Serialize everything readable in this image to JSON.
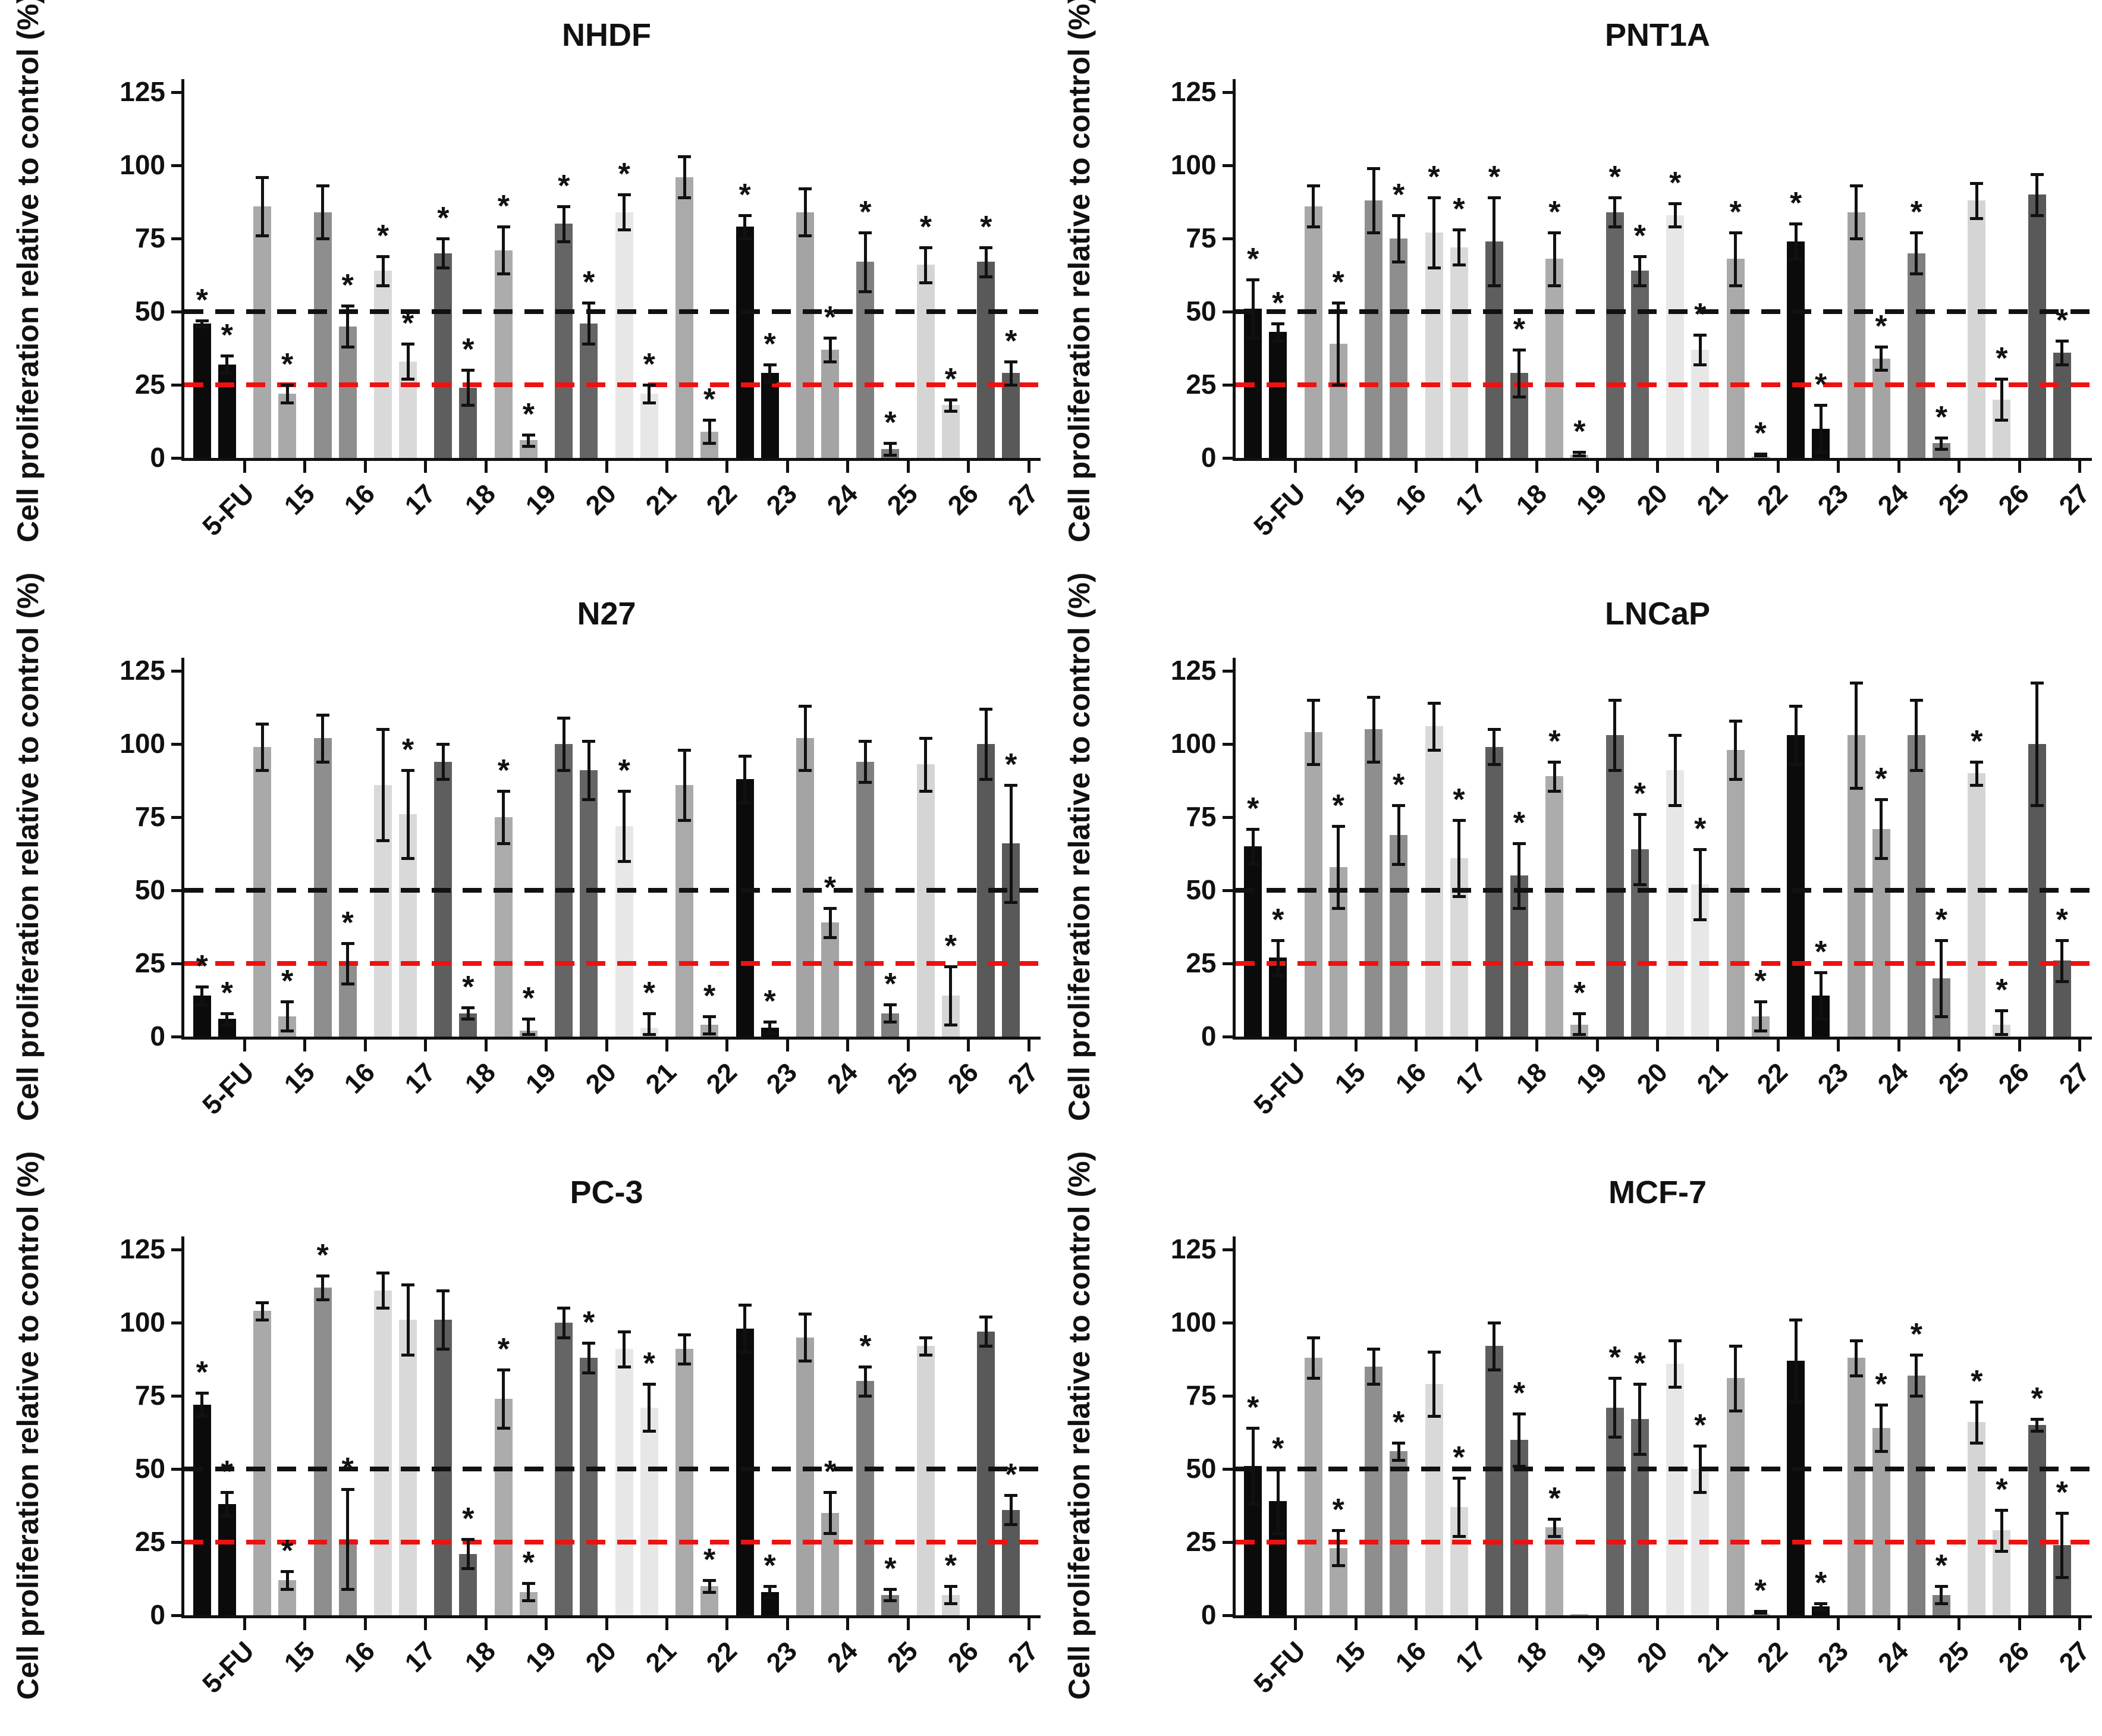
{
  "chart_data": {
    "type": "bar",
    "ylabel": "Cell proliferation relative to control (%)",
    "yticks": [
      0,
      25,
      50,
      75,
      100,
      125
    ],
    "ylim": [
      0,
      125
    ],
    "grid": false,
    "legend": "none",
    "categories": [
      "5-FU",
      "15",
      "16",
      "17",
      "18",
      "19",
      "20",
      "21",
      "22",
      "23",
      "24",
      "25",
      "26",
      "27"
    ],
    "palette": [
      "#0b0b0b",
      "#a9a9a9",
      "#8e8e8e",
      "#d9d9d9",
      "#5e5e5e",
      "#acacac",
      "#656565",
      "#e7e7e7",
      "#aaaaaa",
      "#0b0b0b",
      "#a4a4a4",
      "#7f7f7f",
      "#d5d5d5",
      "#595959"
    ],
    "bars_per_category": 2,
    "bar_format": [
      "value",
      "error",
      "significant"
    ],
    "significance_marker": "*",
    "ref_lines": [
      {
        "y": 50,
        "color": "#111111",
        "style": "dashed"
      },
      {
        "y": 25,
        "color": "#ee1111",
        "style": "dashed"
      }
    ],
    "charts": [
      {
        "title": "NHDF",
        "bars": [
          [
            [
              46,
              1,
              1
            ],
            [
              32,
              3,
              1
            ]
          ],
          [
            [
              86,
              10,
              0
            ],
            [
              22,
              3,
              1
            ]
          ],
          [
            [
              84,
              9,
              0
            ],
            [
              45,
              7,
              1
            ]
          ],
          [
            [
              64,
              5,
              1
            ],
            [
              33,
              6,
              1
            ]
          ],
          [
            [
              70,
              5,
              1
            ],
            [
              24,
              6,
              1
            ]
          ],
          [
            [
              71,
              8,
              1
            ],
            [
              6,
              2,
              1
            ]
          ],
          [
            [
              80,
              6,
              1
            ],
            [
              46,
              7,
              1
            ]
          ],
          [
            [
              84,
              6,
              1
            ],
            [
              22,
              3,
              1
            ]
          ],
          [
            [
              96,
              7,
              0
            ],
            [
              9,
              4,
              1
            ]
          ],
          [
            [
              79,
              4,
              1
            ],
            [
              29,
              3,
              1
            ]
          ],
          [
            [
              84,
              8,
              0
            ],
            [
              37,
              4,
              1
            ]
          ],
          [
            [
              67,
              10,
              1
            ],
            [
              3,
              2,
              1
            ]
          ],
          [
            [
              66,
              6,
              1
            ],
            [
              18,
              2,
              1
            ]
          ],
          [
            [
              67,
              5,
              1
            ],
            [
              29,
              4,
              1
            ]
          ]
        ]
      },
      {
        "title": "PNT1A",
        "bars": [
          [
            [
              51,
              10,
              1
            ],
            [
              43,
              3,
              1
            ]
          ],
          [
            [
              86,
              7,
              0
            ],
            [
              39,
              14,
              1
            ]
          ],
          [
            [
              88,
              11,
              0
            ],
            [
              75,
              8,
              1
            ]
          ],
          [
            [
              77,
              12,
              1
            ],
            [
              72,
              6,
              1
            ]
          ],
          [
            [
              74,
              15,
              1
            ],
            [
              29,
              8,
              1
            ]
          ],
          [
            [
              68,
              9,
              1
            ],
            [
              1,
              1,
              1
            ]
          ],
          [
            [
              84,
              5,
              1
            ],
            [
              64,
              5,
              1
            ]
          ],
          [
            [
              83,
              4,
              1
            ],
            [
              37,
              5,
              1
            ]
          ],
          [
            [
              68,
              9,
              1
            ],
            [
              0.5,
              1,
              1
            ]
          ],
          [
            [
              74,
              6,
              1
            ],
            [
              10,
              8,
              1
            ]
          ],
          [
            [
              84,
              9,
              0
            ],
            [
              34,
              4,
              1
            ]
          ],
          [
            [
              70,
              7,
              1
            ],
            [
              5,
              2,
              1
            ]
          ],
          [
            [
              88,
              6,
              0
            ],
            [
              20,
              7,
              1
            ]
          ],
          [
            [
              90,
              7,
              0
            ],
            [
              36,
              4,
              1
            ]
          ]
        ]
      },
      {
        "title": "N27",
        "bars": [
          [
            [
              14,
              3,
              1
            ],
            [
              6,
              2,
              1
            ]
          ],
          [
            [
              99,
              8,
              0
            ],
            [
              7,
              5,
              1
            ]
          ],
          [
            [
              102,
              8,
              0
            ],
            [
              25,
              7,
              1
            ]
          ],
          [
            [
              86,
              19,
              0
            ],
            [
              76,
              15,
              1
            ]
          ],
          [
            [
              94,
              6,
              0
            ],
            [
              8,
              2,
              1
            ]
          ],
          [
            [
              75,
              9,
              1
            ],
            [
              2,
              4,
              1
            ]
          ],
          [
            [
              100,
              9,
              0
            ],
            [
              91,
              10,
              0
            ]
          ],
          [
            [
              72,
              12,
              1
            ],
            [
              3,
              5,
              1
            ]
          ],
          [
            [
              86,
              12,
              0
            ],
            [
              4,
              3,
              1
            ]
          ],
          [
            [
              88,
              8,
              0
            ],
            [
              3,
              2,
              1
            ]
          ],
          [
            [
              102,
              11,
              0
            ],
            [
              39,
              5,
              1
            ]
          ],
          [
            [
              94,
              7,
              0
            ],
            [
              8,
              3,
              1
            ]
          ],
          [
            [
              93,
              9,
              0
            ],
            [
              14,
              10,
              1
            ]
          ],
          [
            [
              100,
              12,
              0
            ],
            [
              66,
              20,
              1
            ]
          ]
        ]
      },
      {
        "title": "LNCaP",
        "bars": [
          [
            [
              65,
              6,
              1
            ],
            [
              27,
              6,
              1
            ]
          ],
          [
            [
              104,
              11,
              0
            ],
            [
              58,
              14,
              1
            ]
          ],
          [
            [
              105,
              11,
              0
            ],
            [
              69,
              10,
              1
            ]
          ],
          [
            [
              106,
              8,
              0
            ],
            [
              61,
              13,
              1
            ]
          ],
          [
            [
              99,
              6,
              0
            ],
            [
              55,
              11,
              1
            ]
          ],
          [
            [
              89,
              5,
              1
            ],
            [
              4,
              4,
              1
            ]
          ],
          [
            [
              103,
              12,
              0
            ],
            [
              64,
              12,
              1
            ]
          ],
          [
            [
              91,
              12,
              0
            ],
            [
              52,
              12,
              1
            ]
          ],
          [
            [
              98,
              10,
              0
            ],
            [
              7,
              5,
              1
            ]
          ],
          [
            [
              103,
              10,
              0
            ],
            [
              14,
              8,
              1
            ]
          ],
          [
            [
              103,
              18,
              0
            ],
            [
              71,
              10,
              1
            ]
          ],
          [
            [
              103,
              12,
              0
            ],
            [
              20,
              13,
              1
            ]
          ],
          [
            [
              90,
              4,
              1
            ],
            [
              4,
              5,
              1
            ]
          ],
          [
            [
              100,
              21,
              0
            ],
            [
              26,
              7,
              1
            ]
          ]
        ]
      },
      {
        "title": "PC-3",
        "bars": [
          [
            [
              72,
              4,
              1
            ],
            [
              38,
              4,
              1
            ]
          ],
          [
            [
              104,
              3,
              0
            ],
            [
              12,
              3,
              1
            ]
          ],
          [
            [
              112,
              4,
              1
            ],
            [
              26,
              17,
              1
            ]
          ],
          [
            [
              111,
              6,
              0
            ],
            [
              101,
              12,
              0
            ]
          ],
          [
            [
              101,
              10,
              0
            ],
            [
              21,
              5,
              1
            ]
          ],
          [
            [
              74,
              10,
              1
            ],
            [
              8,
              3,
              1
            ]
          ],
          [
            [
              100,
              5,
              0
            ],
            [
              88,
              5,
              1
            ]
          ],
          [
            [
              91,
              6,
              0
            ],
            [
              71,
              8,
              1
            ]
          ],
          [
            [
              91,
              5,
              0
            ],
            [
              10,
              2,
              1
            ]
          ],
          [
            [
              98,
              8,
              0
            ],
            [
              8,
              2,
              1
            ]
          ],
          [
            [
              95,
              8,
              0
            ],
            [
              35,
              7,
              1
            ]
          ],
          [
            [
              80,
              5,
              1
            ],
            [
              7,
              2,
              1
            ]
          ],
          [
            [
              92,
              3,
              0
            ],
            [
              7,
              3,
              1
            ]
          ],
          [
            [
              97,
              5,
              0
            ],
            [
              36,
              5,
              1
            ]
          ]
        ]
      },
      {
        "title": "MCF-7",
        "bars": [
          [
            [
              51,
              13,
              1
            ],
            [
              39,
              11,
              1
            ]
          ],
          [
            [
              88,
              7,
              0
            ],
            [
              23,
              6,
              1
            ]
          ],
          [
            [
              85,
              6,
              0
            ],
            [
              56,
              3,
              1
            ]
          ],
          [
            [
              79,
              11,
              0
            ],
            [
              37,
              10,
              1
            ]
          ],
          [
            [
              92,
              8,
              0
            ],
            [
              60,
              9,
              1
            ]
          ],
          [
            [
              30,
              3,
              1
            ],
            [
              0.5,
              0,
              0
            ]
          ],
          [
            [
              71,
              10,
              1
            ],
            [
              67,
              12,
              1
            ]
          ],
          [
            [
              86,
              8,
              0
            ],
            [
              50,
              8,
              1
            ]
          ],
          [
            [
              81,
              11,
              0
            ],
            [
              0.5,
              1,
              1
            ]
          ],
          [
            [
              87,
              14,
              0
            ],
            [
              3,
              1,
              1
            ]
          ],
          [
            [
              88,
              6,
              0
            ],
            [
              64,
              8,
              1
            ]
          ],
          [
            [
              82,
              7,
              1
            ],
            [
              7,
              3,
              1
            ]
          ],
          [
            [
              66,
              7,
              1
            ],
            [
              29,
              7,
              1
            ]
          ],
          [
            [
              65,
              2,
              1
            ],
            [
              24,
              11,
              1
            ]
          ]
        ]
      }
    ]
  }
}
